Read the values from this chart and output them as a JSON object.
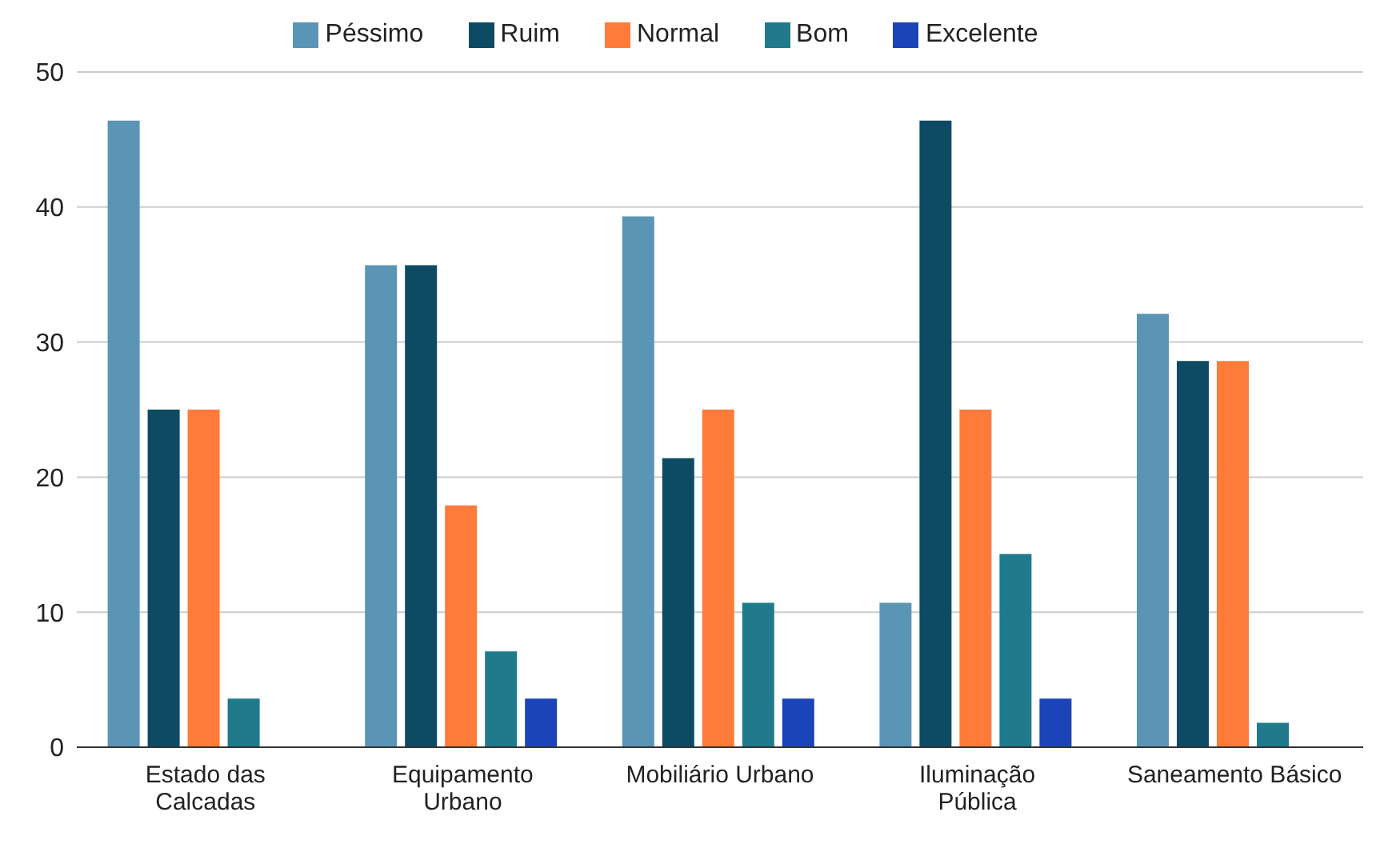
{
  "chart_data": {
    "type": "bar",
    "categories": [
      "Estado das Calcadas",
      "Equipamento Urbano",
      "Mobiliário Urbano",
      "Iluminação Pública",
      "Saneamento Básico"
    ],
    "series": [
      {
        "name": "Péssimo",
        "color": "#5b95b5",
        "values": [
          46.4,
          35.7,
          39.3,
          10.7,
          32.1
        ]
      },
      {
        "name": "Ruim",
        "color": "#0d4a63",
        "values": [
          25,
          35.7,
          21.4,
          46.4,
          28.6
        ]
      },
      {
        "name": "Normal",
        "color": "#ff7b3a",
        "values": [
          25,
          17.9,
          25,
          25,
          28.6
        ]
      },
      {
        "name": "Bom",
        "color": "#1f7a8c",
        "values": [
          3.6,
          7.1,
          10.7,
          14.3,
          1.8
        ]
      },
      {
        "name": "Excelente",
        "color": "#1a44b8",
        "values": [
          null,
          3.6,
          3.6,
          3.6,
          null
        ]
      }
    ],
    "ylim": [
      0,
      50
    ],
    "yticks": [
      0,
      10,
      20,
      30,
      40,
      50
    ],
    "grid": "y",
    "legend": "top"
  }
}
